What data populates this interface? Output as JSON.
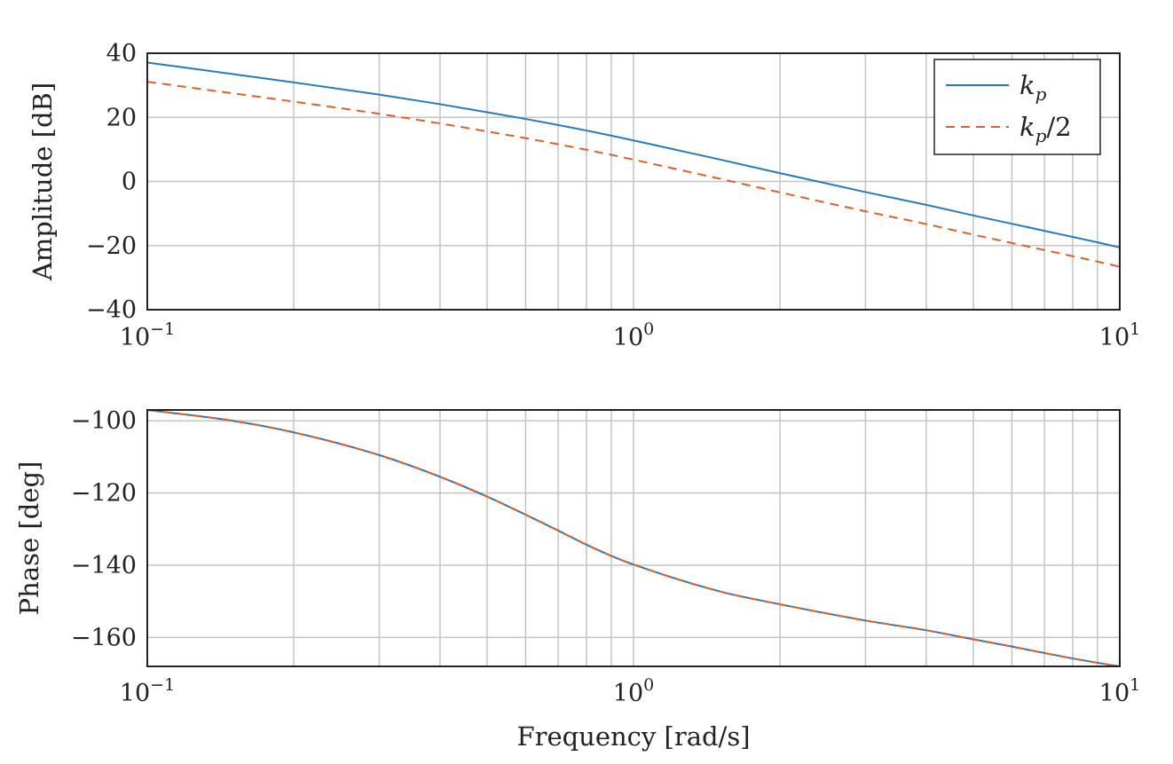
{
  "chart_data": [
    {
      "type": "line",
      "panel": "amplitude",
      "ylabel": "Amplitude [dB]",
      "xscale": "log",
      "xlim": [
        0.1,
        10
      ],
      "ylim": [
        -40,
        40
      ],
      "xticks": [
        {
          "v": 0.1,
          "base": "10",
          "exp": "−1"
        },
        {
          "v": 1,
          "base": "10",
          "exp": "0"
        },
        {
          "v": 10,
          "base": "10",
          "exp": "1"
        }
      ],
      "yticks": [
        {
          "v": 40,
          "label": "40"
        },
        {
          "v": 20,
          "label": "20"
        },
        {
          "v": 0,
          "label": "0"
        },
        {
          "v": -20,
          "label": "−20"
        },
        {
          "v": -40,
          "label": "−40"
        }
      ],
      "grid": true,
      "legend": "top-right",
      "x": [
        0.1,
        0.15,
        0.2,
        0.3,
        0.4,
        0.5,
        0.6,
        0.7,
        0.8,
        0.9,
        1.0,
        1.5,
        2,
        3,
        4,
        5,
        6,
        7,
        8,
        9,
        10
      ],
      "series": [
        {
          "name_base": "k",
          "name_sub": "p",
          "name_suffix": "",
          "color": "#2a7ab8",
          "dash": "solid",
          "values": [
            37.1,
            33.5,
            30.9,
            27.1,
            24.1,
            21.6,
            19.5,
            17.6,
            15.9,
            14.3,
            12.8,
            6.9,
            2.6,
            -3.3,
            -7.3,
            -10.6,
            -13.2,
            -15.4,
            -17.3,
            -19.0,
            -20.6
          ]
        },
        {
          "name_base": "k",
          "name_sub": "p",
          "name_suffix": "/2",
          "color": "#d9622b",
          "dash": "dashed",
          "values": [
            31.1,
            27.5,
            24.9,
            21.1,
            18.1,
            15.6,
            13.5,
            11.6,
            9.9,
            8.3,
            6.8,
            0.9,
            -3.4,
            -9.3,
            -13.3,
            -16.6,
            -19.2,
            -21.4,
            -23.3,
            -25.0,
            -26.6
          ]
        }
      ]
    },
    {
      "type": "line",
      "panel": "phase",
      "ylabel": "Phase [deg]",
      "xlabel": "Frequency [rad/s]",
      "xscale": "log",
      "xlim": [
        0.1,
        10
      ],
      "ylim": [
        -168,
        -97
      ],
      "xticks": [
        {
          "v": 0.1,
          "base": "10",
          "exp": "−1"
        },
        {
          "v": 1,
          "base": "10",
          "exp": "0"
        },
        {
          "v": 10,
          "base": "10",
          "exp": "1"
        }
      ],
      "yticks": [
        {
          "v": -100,
          "label": "−100"
        },
        {
          "v": -120,
          "label": "−120"
        },
        {
          "v": -140,
          "label": "−140"
        },
        {
          "v": -160,
          "label": "−160"
        }
      ],
      "grid": true,
      "x": [
        0.1,
        0.15,
        0.2,
        0.3,
        0.4,
        0.5,
        0.6,
        0.7,
        0.8,
        0.9,
        1.0,
        1.5,
        2,
        3,
        4,
        5,
        6,
        7,
        8,
        9,
        10
      ],
      "series": [
        {
          "color": "#2a7ab8",
          "dash": "solid",
          "values": [
            -97,
            -100,
            -103.2,
            -109.5,
            -115.5,
            -121,
            -126,
            -130.4,
            -134.3,
            -137.4,
            -139.8,
            -147.2,
            -150.8,
            -155.3,
            -158,
            -160.5,
            -162.5,
            -164.3,
            -165.8,
            -167,
            -168
          ]
        },
        {
          "color": "#d9622b",
          "dash": "dashed",
          "values": [
            -97,
            -100,
            -103.2,
            -109.5,
            -115.5,
            -121,
            -126,
            -130.4,
            -134.3,
            -137.4,
            -139.8,
            -147.2,
            -150.8,
            -155.3,
            -158,
            -160.5,
            -162.5,
            -164.3,
            -165.8,
            -167,
            -168
          ]
        }
      ]
    }
  ]
}
